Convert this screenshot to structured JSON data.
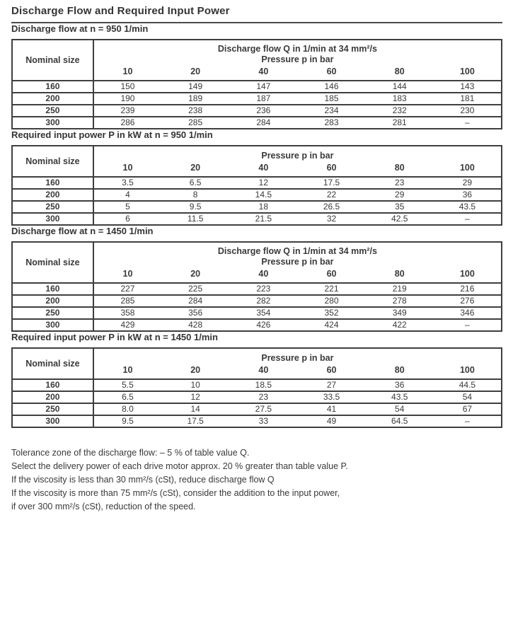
{
  "page": {
    "title": "Discharge Flow and Required Input Power"
  },
  "colors": {
    "text": "#3a3a3a",
    "border": "#3f3f3f",
    "background": "#ffffff"
  },
  "tables": [
    {
      "subtitle": "Discharge flow at n = 950 1/min",
      "nominal_label": "Nominal size",
      "header_lines": [
        "Discharge flow Q in 1/min at 34 mm²/s",
        "Pressure p in bar"
      ],
      "pressures": [
        "10",
        "20",
        "40",
        "60",
        "80",
        "100"
      ],
      "rows": [
        {
          "size": "160",
          "values": [
            "150",
            "149",
            "147",
            "146",
            "144",
            "143"
          ]
        },
        {
          "size": "200",
          "values": [
            "190",
            "189",
            "187",
            "185",
            "183",
            "181"
          ]
        },
        {
          "size": "250",
          "values": [
            "239",
            "238",
            "236",
            "234",
            "232",
            "230"
          ]
        },
        {
          "size": "300",
          "values": [
            "286",
            "285",
            "284",
            "283",
            "281",
            "–"
          ]
        }
      ]
    },
    {
      "subtitle": "Required input power P in kW at n = 950 1/min",
      "nominal_label": "Nominal size",
      "header_lines": [
        "Pressure p in bar"
      ],
      "pressures": [
        "10",
        "20",
        "40",
        "60",
        "80",
        "100"
      ],
      "rows": [
        {
          "size": "160",
          "values": [
            "3.5",
            "6.5",
            "12",
            "17.5",
            "23",
            "29"
          ]
        },
        {
          "size": "200",
          "values": [
            "4",
            "8",
            "14.5",
            "22",
            "29",
            "36"
          ]
        },
        {
          "size": "250",
          "values": [
            "5",
            "9.5",
            "18",
            "26.5",
            "35",
            "43.5"
          ]
        },
        {
          "size": "300",
          "values": [
            "6",
            "11.5",
            "21.5",
            "32",
            "42.5",
            "–"
          ]
        }
      ]
    },
    {
      "subtitle": "Discharge flow at n = 1450 1/min",
      "nominal_label": "Nominal size",
      "header_lines": [
        "Discharge flow Q in 1/min at 34 mm²/s",
        "Pressure p in bar"
      ],
      "pressures": [
        "10",
        "20",
        "40",
        "60",
        "80",
        "100"
      ],
      "rows": [
        {
          "size": "160",
          "values": [
            "227",
            "225",
            "223",
            "221",
            "219",
            "216"
          ]
        },
        {
          "size": "200",
          "values": [
            "285",
            "284",
            "282",
            "280",
            "278",
            "276"
          ]
        },
        {
          "size": "250",
          "values": [
            "358",
            "356",
            "354",
            "352",
            "349",
            "346"
          ]
        },
        {
          "size": "300",
          "values": [
            "429",
            "428",
            "426",
            "424",
            "422",
            "–"
          ]
        }
      ]
    },
    {
      "subtitle": "Required input power P in kW at n = 1450 1/min",
      "nominal_label": "Nominal size",
      "header_lines": [
        "Pressure p in bar"
      ],
      "pressures": [
        "10",
        "20",
        "40",
        "60",
        "80",
        "100"
      ],
      "rows": [
        {
          "size": "160",
          "values": [
            "5.5",
            "10",
            "18.5",
            "27",
            "36",
            "44.5"
          ]
        },
        {
          "size": "200",
          "values": [
            "6.5",
            "12",
            "23",
            "33.5",
            "43.5",
            "54"
          ]
        },
        {
          "size": "250",
          "values": [
            "8.0",
            "14",
            "27.5",
            "41",
            "54",
            "67"
          ]
        },
        {
          "size": "300",
          "values": [
            "9.5",
            "17.5",
            "33",
            "49",
            "64.5",
            "–"
          ]
        }
      ]
    }
  ],
  "notes": [
    "Tolerance zone of the discharge flow: – 5 % of table value Q.",
    "Select the delivery power of each drive motor approx. 20 % greater than table value P.",
    "If the viscosity is less than 30 mm²/s (cSt), reduce discharge flow Q",
    "If the viscosity is more than 75 mm²/s (cSt), consider the addition to the input power,",
    "if over 300 mm²/s (cSt), reduction of the speed."
  ]
}
